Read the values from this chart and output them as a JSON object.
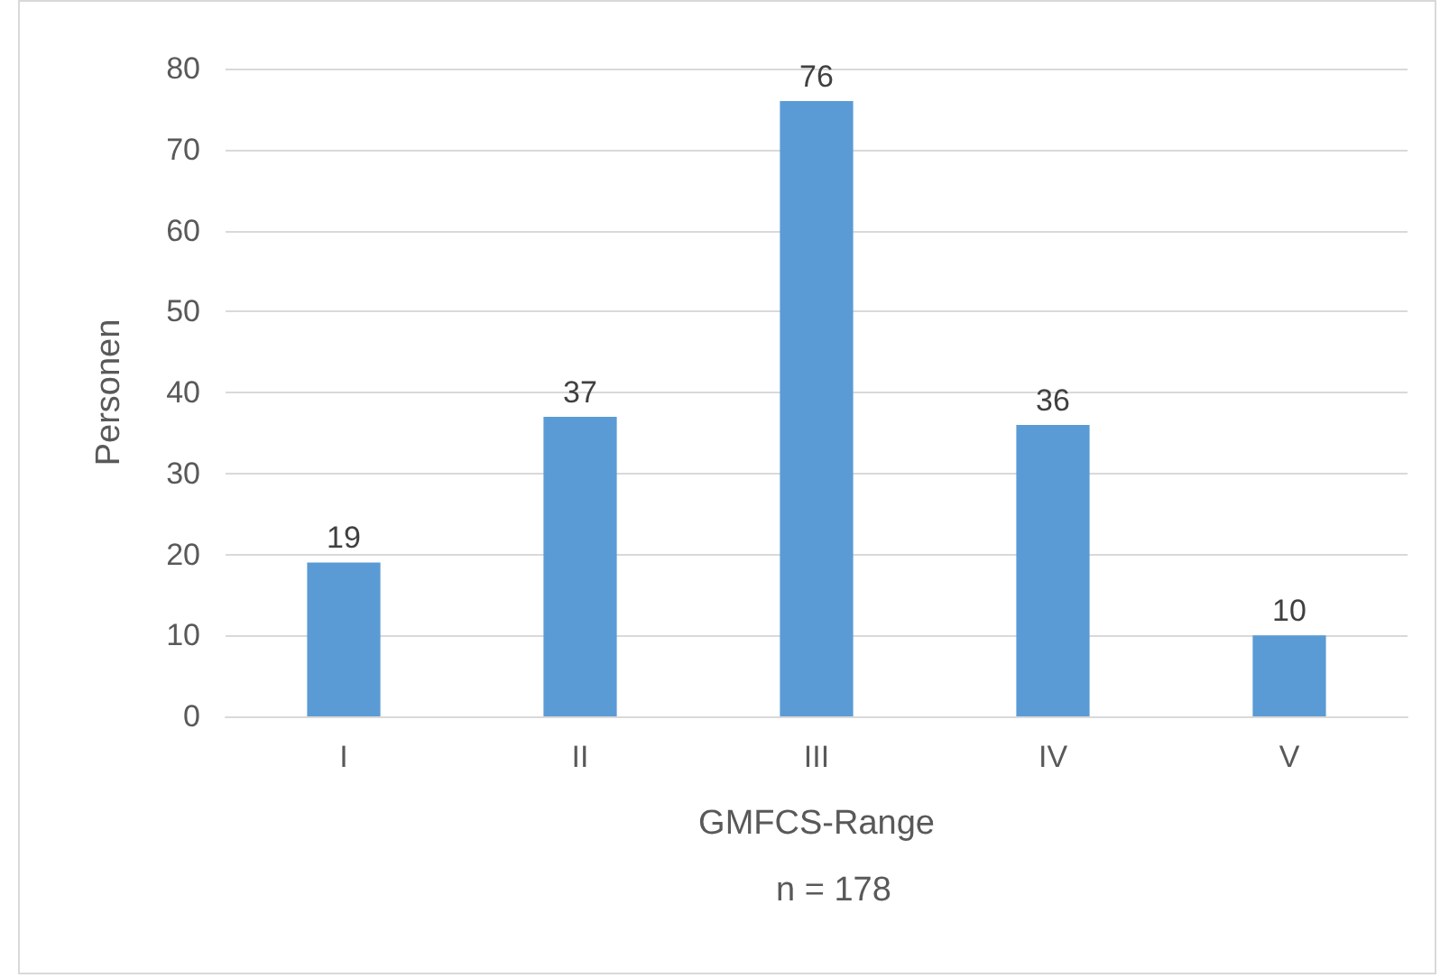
{
  "chart_data": {
    "type": "bar",
    "categories": [
      "I",
      "II",
      "III",
      "IV",
      "V"
    ],
    "values": [
      19,
      37,
      76,
      36,
      10
    ],
    "color": "#5b9bd5",
    "ylabel": "Personen",
    "xlabel": "GMFCS-Range",
    "annotations": [
      "n = 178"
    ],
    "ylim": [
      0,
      80
    ],
    "yticks": [
      0,
      10,
      20,
      30,
      40,
      50,
      60,
      70,
      80
    ],
    "grid": "y",
    "data_labels": true
  }
}
